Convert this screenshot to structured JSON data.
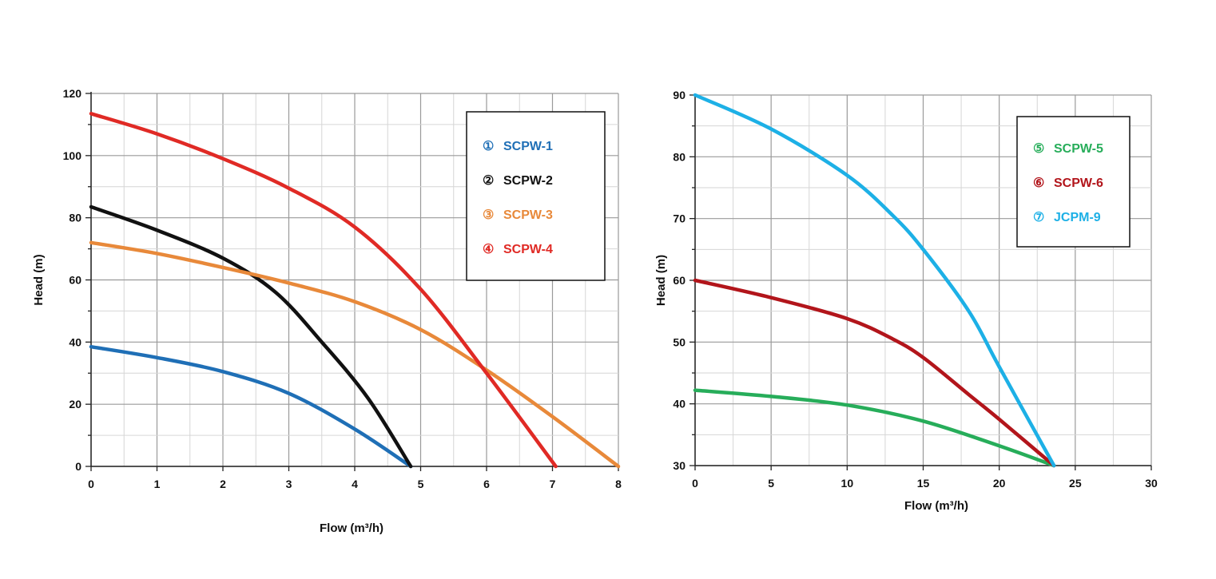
{
  "chart_data": [
    {
      "type": "line",
      "xlabel": "Flow (m³/h)",
      "ylabel": "Head (m)",
      "xlim": [
        0,
        8
      ],
      "ylim": [
        0,
        120
      ],
      "xticks": [
        "0",
        "1",
        "2",
        "3",
        "4",
        "5",
        "6",
        "7",
        "8"
      ],
      "yticks": [
        "0",
        "20",
        "40",
        "60",
        "80",
        "100",
        "120"
      ],
      "grid": true,
      "legend_position": "top-right",
      "series": [
        {
          "marker": "①",
          "name": "SCPW-1",
          "color": "#1f6fb6",
          "points": [
            [
              0,
              38.5
            ],
            [
              1,
              35
            ],
            [
              2,
              30.5
            ],
            [
              3,
              23.5
            ],
            [
              4,
              12
            ],
            [
              4.85,
              0
            ]
          ]
        },
        {
          "marker": "②",
          "name": "SCPW-2",
          "color": "#111111",
          "points": [
            [
              0,
              83.5
            ],
            [
              1,
              76
            ],
            [
              2,
              67
            ],
            [
              2.8,
              56
            ],
            [
              3.5,
              40
            ],
            [
              4.2,
              22
            ],
            [
              4.85,
              0
            ]
          ]
        },
        {
          "marker": "③",
          "name": "SCPW-3",
          "color": "#e8893a",
          "points": [
            [
              0,
              72
            ],
            [
              1,
              68.5
            ],
            [
              2,
              64
            ],
            [
              3,
              59
            ],
            [
              4,
              53
            ],
            [
              5,
              44
            ],
            [
              6,
              31
            ],
            [
              7,
              16
            ],
            [
              8,
              0
            ]
          ]
        },
        {
          "marker": "④",
          "name": "SCPW-4",
          "color": "#e02a25",
          "points": [
            [
              0,
              113.5
            ],
            [
              1,
              107
            ],
            [
              2,
              99
            ],
            [
              3,
              89.5
            ],
            [
              4,
              77
            ],
            [
              5,
              57
            ],
            [
              6,
              30
            ],
            [
              7.05,
              0
            ]
          ]
        }
      ]
    },
    {
      "type": "line",
      "xlabel": "Flow (m³/h)",
      "ylabel": "Head (m)",
      "xlim": [
        0,
        30
      ],
      "ylim": [
        30,
        90
      ],
      "xticks": [
        "0",
        "5",
        "10",
        "15",
        "20",
        "25",
        "30"
      ],
      "yticks": [
        "30",
        "40",
        "50",
        "60",
        "70",
        "80",
        "90"
      ],
      "grid": true,
      "legend_position": "top-right",
      "series": [
        {
          "marker": "⑤",
          "name": "SCPW-5",
          "color": "#27ad5a",
          "points": [
            [
              0,
              42.2
            ],
            [
              5,
              41.2
            ],
            [
              10,
              39.8
            ],
            [
              15,
              37.2
            ],
            [
              20,
              33.2
            ],
            [
              23.6,
              30
            ]
          ]
        },
        {
          "marker": "⑥",
          "name": "SCPW-6",
          "color": "#b2151b",
          "points": [
            [
              0,
              60
            ],
            [
              5,
              57.2
            ],
            [
              10,
              53.8
            ],
            [
              13,
              50.5
            ],
            [
              15,
              47.5
            ],
            [
              18,
              41.5
            ],
            [
              20,
              37.5
            ],
            [
              23.6,
              30
            ]
          ]
        },
        {
          "marker": "⑦",
          "name": "JCPM-9",
          "color": "#1db0e6",
          "points": [
            [
              0,
              90
            ],
            [
              5,
              84.5
            ],
            [
              10,
              77
            ],
            [
              13,
              70.5
            ],
            [
              15,
              65
            ],
            [
              18,
              55
            ],
            [
              20,
              46
            ],
            [
              23.6,
              30
            ]
          ]
        }
      ]
    }
  ]
}
